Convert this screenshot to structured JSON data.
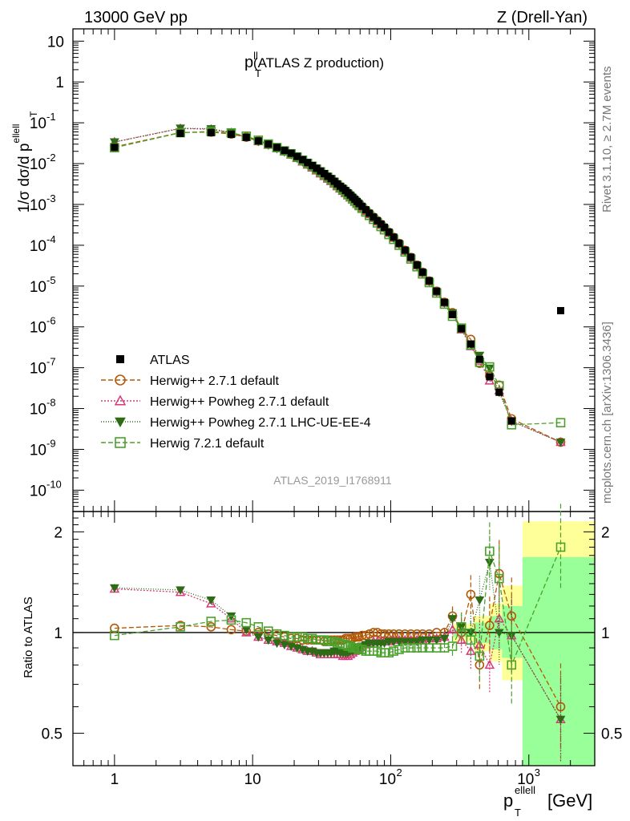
{
  "header": {
    "left": "13000 GeV pp",
    "right": "Z (Drell-Yan)"
  },
  "side_text": {
    "rivet": "Rivet 3.1.10, ≥ 2.7M events",
    "mcplots": "mcplots.cern.ch [arXiv:1306.3436]"
  },
  "chart_data": {
    "type": "scatter",
    "title": "(ATLAS Z production)",
    "title_symbol": "p",
    "title_sup": "ll",
    "title_sub": "T",
    "analysis_id": "ATLAS_2019_I1768911",
    "xlabel": "[GeV]",
    "xlabel_symbol": "p",
    "xlabel_sup": "ellell",
    "xlabel_sub": "T",
    "ylabel": "1/σ dσ/d p",
    "ylabel_sup": "ellell",
    "ylabel_sub": "T",
    "xscale": "log",
    "yscale": "log",
    "xlim": [
      0.5,
      3000
    ],
    "ylim": [
      3e-11,
      20
    ],
    "xticks": [
      "1",
      "10",
      "10^2",
      "10^3"
    ],
    "xtick_values": [
      1,
      10,
      100,
      1000
    ],
    "yticks": [
      "10^-10",
      "10^-9",
      "10^-8",
      "10^-7",
      "10^-6",
      "10^-5",
      "10^-4",
      "10^-3",
      "10^-2",
      "10^-1",
      "1",
      "10"
    ],
    "ytick_values": [
      1e-10,
      1e-09,
      1e-08,
      1e-07,
      1e-06,
      1e-05,
      0.0001,
      0.001,
      0.01,
      0.1,
      1,
      10
    ],
    "legend_position": "bottom-left",
    "x": [
      1,
      3,
      5,
      7,
      9,
      11,
      13,
      15,
      17,
      19,
      21,
      23,
      25,
      27,
      29,
      31,
      33,
      35,
      37,
      39,
      41,
      43,
      45,
      47,
      49,
      51,
      53,
      55,
      57,
      59,
      62,
      66,
      70,
      75,
      80,
      85,
      90,
      97,
      105,
      115,
      127,
      140,
      155,
      170,
      190,
      215,
      245,
      280,
      325,
      380,
      440,
      520,
      610,
      750,
      1700
    ],
    "data_series": {
      "name": "ATLAS",
      "color": "#000000",
      "values": [
        0.025,
        0.055,
        0.057,
        0.052,
        0.044,
        0.036,
        0.03,
        0.025,
        0.021,
        0.018,
        0.015,
        0.0125,
        0.0106,
        0.009,
        0.0077,
        0.0066,
        0.0057,
        0.0049,
        0.0043,
        0.0037,
        0.0032,
        0.0028,
        0.0025,
        0.0022,
        0.00193,
        0.0017,
        0.0015,
        0.00133,
        0.00118,
        0.00105,
        0.0009,
        0.00074,
        0.00061,
        0.00049,
        0.0004,
        0.00033,
        0.000275,
        0.00021,
        0.000158,
        0.000112,
        7.6e-05,
        5.1e-05,
        3.3e-05,
        2.2e-05,
        1.35e-05,
        7.5e-06,
        4e-06,
        2e-06,
        9e-07,
        3.8e-07,
        1.6e-07,
        6e-08,
        2.5e-08,
        5e-09,
        2.5e-06
      ]
    },
    "series": [
      {
        "name": "Herwig++ 2.7.1 default",
        "color": "#b35806",
        "marker": "circle",
        "dash": "6,3",
        "ratio": [
          1.03,
          1.05,
          1.04,
          1.02,
          1.01,
          1.0,
          0.99,
          0.98,
          0.97,
          0.96,
          0.96,
          0.95,
          0.95,
          0.95,
          0.95,
          0.95,
          0.94,
          0.95,
          0.95,
          0.95,
          0.95,
          0.95,
          0.95,
          0.96,
          0.96,
          0.96,
          0.96,
          0.97,
          0.97,
          0.97,
          0.98,
          0.98,
          0.99,
          1.0,
          1.0,
          0.99,
          0.99,
          0.99,
          0.99,
          0.99,
          0.99,
          0.99,
          0.99,
          0.99,
          0.99,
          1.0,
          1.0,
          1.12,
          1.0,
          1.3,
          0.8,
          1.05,
          1.5,
          1.12,
          0.6
        ]
      },
      {
        "name": "Herwig++ Powheg 2.7.1 default",
        "color": "#d63a7a",
        "marker": "triangle",
        "dash": "2,2",
        "ratio": [
          1.35,
          1.32,
          1.22,
          1.1,
          1.0,
          0.97,
          0.95,
          0.94,
          0.93,
          0.91,
          0.9,
          0.89,
          0.88,
          0.88,
          0.87,
          0.86,
          0.86,
          0.86,
          0.86,
          0.86,
          0.86,
          0.86,
          0.85,
          0.85,
          0.85,
          0.86,
          0.87,
          0.88,
          0.89,
          0.9,
          0.91,
          0.92,
          0.93,
          0.94,
          0.94,
          0.94,
          0.94,
          0.94,
          0.95,
          0.95,
          0.95,
          0.95,
          0.95,
          0.95,
          0.96,
          0.96,
          0.97,
          1.02,
          0.95,
          0.88,
          0.92,
          0.8,
          1.1,
          0.98,
          0.55
        ]
      },
      {
        "name": "Herwig++ Powheg 2.7.1 LHC-UE-EE-4",
        "color": "#2e6b16",
        "marker": "triangle-down",
        "dash": "1,2",
        "ratio": [
          1.36,
          1.34,
          1.25,
          1.12,
          1.02,
          0.97,
          0.95,
          0.93,
          0.92,
          0.91,
          0.9,
          0.89,
          0.88,
          0.88,
          0.87,
          0.87,
          0.87,
          0.87,
          0.87,
          0.88,
          0.88,
          0.87,
          0.87,
          0.87,
          0.87,
          0.88,
          0.88,
          0.89,
          0.9,
          0.9,
          0.91,
          0.92,
          0.93,
          0.93,
          0.93,
          0.93,
          0.93,
          0.94,
          0.94,
          0.94,
          0.94,
          0.94,
          0.94,
          0.95,
          0.95,
          0.95,
          0.96,
          1.1,
          1.04,
          1.0,
          1.25,
          1.62,
          1.0,
          0.98,
          0.55
        ]
      },
      {
        "name": "Herwig 7.2.1 default",
        "color": "#4aa12b",
        "marker": "square",
        "dash": "6,3",
        "ratio": [
          0.98,
          1.04,
          1.08,
          1.09,
          1.07,
          1.04,
          1.01,
          0.99,
          0.98,
          0.97,
          0.97,
          0.97,
          0.96,
          0.96,
          0.95,
          0.95,
          0.95,
          0.94,
          0.94,
          0.94,
          0.93,
          0.93,
          0.92,
          0.92,
          0.91,
          0.91,
          0.9,
          0.9,
          0.9,
          0.89,
          0.89,
          0.88,
          0.88,
          0.88,
          0.88,
          0.87,
          0.87,
          0.87,
          0.88,
          0.89,
          0.9,
          0.9,
          0.9,
          0.9,
          0.9,
          0.9,
          0.9,
          0.91,
          1.04,
          0.95,
          0.85,
          1.75,
          1.45,
          0.8,
          1.8
        ]
      }
    ],
    "ratio_panel": {
      "ylabel": "Ratio to ATLAS",
      "yscale": "log",
      "ylim": [
        0.4,
        2.3
      ],
      "yticks": [
        "0.5",
        "1",
        "2"
      ],
      "ytick_values": [
        0.5,
        1,
        2
      ],
      "reference_line": 1,
      "bands": [
        {
          "x_from": 280,
          "x_to": 400,
          "yellow": [
            0.94,
            1.06
          ],
          "green": [
            0.97,
            1.03
          ]
        },
        {
          "x_from": 400,
          "x_to": 520,
          "yellow": [
            0.88,
            1.12
          ],
          "green": [
            0.93,
            1.07
          ]
        },
        {
          "x_from": 520,
          "x_to": 640,
          "yellow": [
            0.82,
            1.22
          ],
          "green": [
            0.89,
            1.12
          ]
        },
        {
          "x_from": 640,
          "x_to": 900,
          "yellow": [
            0.72,
            1.38
          ],
          "green": [
            0.84,
            1.2
          ]
        },
        {
          "x_from": 900,
          "x_to": 3000,
          "yellow": [
            0.0,
            2.15
          ],
          "green": [
            0.0,
            1.68
          ]
        }
      ]
    }
  }
}
